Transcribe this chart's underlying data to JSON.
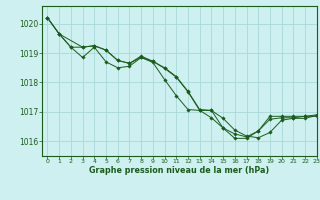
{
  "title": "Graphe pression niveau de la mer (hPa)",
  "bg_color": "#cff0f0",
  "grid_color": "#a8d8d8",
  "line_color": "#1a5c1a",
  "xlim": [
    -0.5,
    23
  ],
  "ylim": [
    1015.5,
    1020.6
  ],
  "yticks": [
    1016,
    1017,
    1018,
    1019,
    1020
  ],
  "xticks": [
    0,
    1,
    2,
    3,
    4,
    5,
    6,
    7,
    8,
    9,
    10,
    11,
    12,
    13,
    14,
    15,
    16,
    17,
    18,
    19,
    20,
    21,
    22,
    23
  ],
  "series1_x": [
    0,
    1,
    2,
    3,
    4,
    5,
    6,
    7,
    8,
    9,
    10,
    11,
    12,
    13,
    14,
    15,
    16,
    17,
    18,
    19,
    20,
    21,
    22,
    23
  ],
  "series1_y": [
    1020.2,
    1019.65,
    1019.2,
    1019.2,
    1019.25,
    1019.1,
    1018.75,
    1018.65,
    1018.85,
    1018.72,
    1018.5,
    1018.2,
    1017.7,
    1017.08,
    1017.05,
    1016.45,
    1016.1,
    1016.1,
    1016.35,
    1016.75,
    1016.8,
    1016.8,
    1016.85,
    1016.9
  ],
  "series2_x": [
    0,
    1,
    2,
    3,
    4,
    5,
    6,
    7,
    8,
    9,
    10,
    11,
    12,
    13,
    14,
    15,
    16,
    17,
    18,
    19,
    20,
    21,
    22,
    23
  ],
  "series2_y": [
    1020.2,
    1019.65,
    1019.2,
    1018.85,
    1019.2,
    1018.7,
    1018.5,
    1018.55,
    1018.85,
    1018.68,
    1018.1,
    1017.55,
    1017.08,
    1017.05,
    1016.8,
    1016.45,
    1016.25,
    1016.15,
    1016.35,
    1016.85,
    1016.85,
    1016.85,
    1016.85,
    1016.85
  ],
  "series3_x": [
    0,
    1,
    3,
    4,
    5,
    6,
    7,
    8,
    9,
    10,
    11,
    12,
    13,
    14,
    15,
    16,
    17,
    18,
    19,
    20,
    21,
    22,
    23
  ],
  "series3_y": [
    1020.2,
    1019.65,
    1019.2,
    1019.25,
    1019.1,
    1018.75,
    1018.65,
    1018.9,
    1018.72,
    1018.48,
    1018.18,
    1017.68,
    1017.05,
    1017.05,
    1016.78,
    1016.38,
    1016.18,
    1016.12,
    1016.3,
    1016.72,
    1016.78,
    1016.78,
    1016.88
  ]
}
